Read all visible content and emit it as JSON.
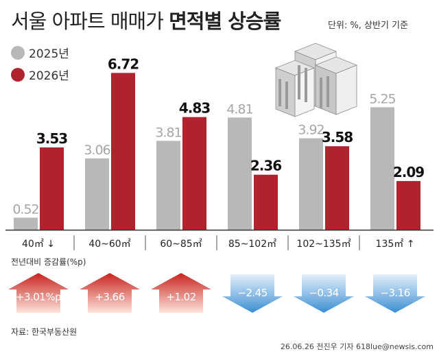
{
  "header": {
    "title_normal": "서울 아파트 매매가 ",
    "title_bold": "면적별 상승률",
    "unit": "단위: %, 상반기 기준"
  },
  "chart_data": {
    "type": "bar",
    "categories": [
      "40㎡ ↓",
      "40~60㎡",
      "60~85㎡",
      "85~102㎡",
      "102~135㎡",
      "135㎡ ↑"
    ],
    "series": [
      {
        "name": "2025년",
        "color": "#b8b8b8",
        "values": [
          0.52,
          3.06,
          3.81,
          4.81,
          3.92,
          5.25
        ]
      },
      {
        "name": "2026년",
        "color": "#b0222e",
        "values": [
          3.53,
          6.72,
          4.83,
          2.36,
          3.58,
          2.09
        ]
      }
    ],
    "value_labels": {
      "2025년": [
        "0.52",
        "3.06",
        "3.81",
        "4.81",
        "3.92",
        "5.25"
      ],
      "2026년": [
        "3.53",
        "6.72",
        "4.83",
        "2.36",
        "3.58",
        "2.09"
      ]
    },
    "ylim": [
      0,
      7.2
    ],
    "grid": false,
    "legend": "top-left",
    "change": {
      "title": "전년대비 증감률(%p)",
      "values": [
        3.01,
        3.66,
        1.02,
        -2.45,
        -0.34,
        -3.16
      ],
      "labels": [
        "+3.01%p",
        "+3.66",
        "+1.02",
        "−2.45",
        "−0.34",
        "−3.16"
      ],
      "up_color": "#c8231f",
      "down_color": "#3d8ed2"
    }
  },
  "footer": {
    "source": "자료: 한국부동산원",
    "credit": "26.06.26 전진우 기자 618lue@newsis.com"
  },
  "icons": {
    "illustration": "apartment-buildings-icon"
  }
}
